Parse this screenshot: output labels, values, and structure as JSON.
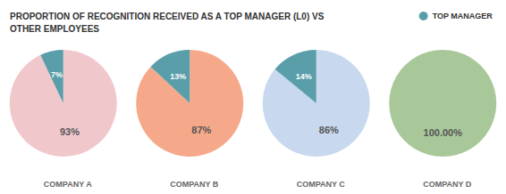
{
  "chart_data": {
    "type": "pie",
    "title": "PROPORTION OF RECOGNITION RECEIVED AS A TOP MANAGER (L0) VS\nOTHER EMPLOYEES",
    "categories": [
      null,
      "TOP MANAGER"
    ],
    "legend": "top right",
    "series": [
      {
        "name": "COMPANY A",
        "values": [
          93,
          7
        ],
        "value_labels": [
          "93%",
          "7%"
        ],
        "colors": [
          "#f0c8cc",
          "#5a9eaa"
        ]
      },
      {
        "name": "COMPANY B",
        "values": [
          87,
          13
        ],
        "value_labels": [
          "87%",
          "13%"
        ],
        "colors": [
          "#f5a98a",
          "#5a9eaa"
        ]
      },
      {
        "name": "COMPANY C",
        "values": [
          86,
          14
        ],
        "value_labels": [
          "86%",
          "14%"
        ],
        "colors": [
          "#c8d8ee",
          "#5a9eaa"
        ]
      },
      {
        "name": "COMPANY D",
        "values": [
          100,
          0
        ],
        "value_labels": [
          "100.00%",
          null
        ],
        "colors": [
          "#a8c89a",
          "#5a9eaa"
        ]
      }
    ]
  }
}
